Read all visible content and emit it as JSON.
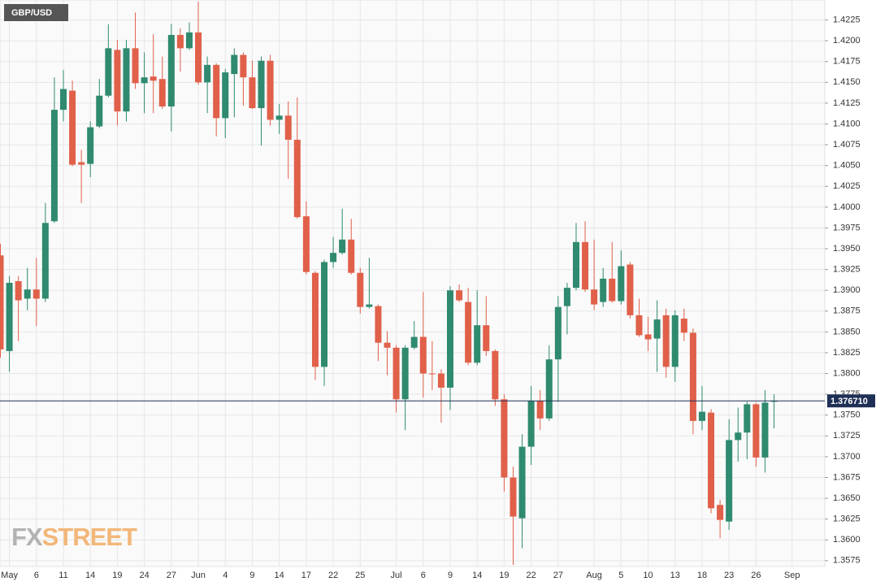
{
  "chart_data": {
    "type": "candlestick",
    "title": "GBP/USD",
    "watermark": [
      "FX",
      "STREET"
    ],
    "categories": [
      null,
      "May",
      null,
      null,
      "6",
      null,
      null,
      "11",
      null,
      null,
      "14",
      null,
      null,
      "19",
      null,
      null,
      "24",
      null,
      null,
      "27",
      null,
      null,
      "Jun",
      null,
      null,
      "4",
      null,
      null,
      "9",
      null,
      null,
      "14",
      null,
      null,
      "17",
      null,
      null,
      "22",
      null,
      null,
      "25",
      null,
      null,
      null,
      "Jul",
      null,
      null,
      "6",
      null,
      null,
      "9",
      null,
      null,
      "14",
      null,
      null,
      "19",
      null,
      null,
      "22",
      null,
      null,
      "27",
      null,
      null,
      null,
      "Aug",
      null,
      null,
      "5",
      null,
      null,
      "10",
      null,
      null,
      "13",
      null,
      null,
      "18",
      null,
      null,
      "23",
      null,
      null,
      "26",
      null,
      null,
      null,
      "Sep"
    ],
    "open": [
      1.3942,
      1.3827,
      1.3911,
      1.389,
      1.3901,
      1.389,
      1.3983,
      1.4117,
      1.414,
      1.4054,
      1.4052,
      1.4097,
      1.4134,
      1.4189,
      1.4115,
      1.4191,
      1.4149,
      1.4157,
      1.4154,
      1.4121,
      1.4207,
      1.4191,
      1.421,
      1.415,
      1.4171,
      1.4107,
      1.416,
      1.4183,
      1.4156,
      1.4119,
      1.4176,
      1.4105,
      1.411,
      1.4081,
      1.3989,
      1.3921,
      1.3808,
      1.3934,
      1.3945,
      1.3961,
      1.3921,
      1.388,
      1.3881,
      1.3837,
      1.3831,
      1.3769,
      1.3831,
      1.3844,
      1.38,
      1.38,
      1.3783,
      1.39,
      1.3886,
      1.3813,
      1.3858,
      1.3827,
      1.3769,
      1.3675,
      1.3626,
      1.3712,
      1.3767,
      1.3746,
      1.3817,
      1.3881,
      1.3903,
      1.3958,
      1.3901,
      1.3886,
      1.3914,
      1.3887,
      1.3931,
      1.387,
      1.3847,
      1.3842,
      1.387,
      1.3808,
      1.3866,
      1.3849,
      1.3743,
      1.3753,
      1.3642,
      1.3622,
      1.372,
      1.3729,
      1.3763,
      1.3699,
      1.3766,
      null,
      null
    ],
    "high": [
      1.3956,
      1.3917,
      1.3917,
      1.3927,
      1.3939,
      1.4005,
      1.4156,
      1.4165,
      1.4152,
      1.4069,
      1.4103,
      1.4154,
      1.422,
      1.4201,
      1.4201,
      1.4234,
      1.4186,
      1.4208,
      1.4181,
      1.422,
      1.4215,
      1.4222,
      1.4247,
      1.4181,
      1.4173,
      1.4166,
      1.4191,
      1.4186,
      1.4176,
      1.4181,
      1.4183,
      1.4124,
      1.4127,
      1.4132,
      1.4007,
      1.3923,
      1.3937,
      1.3964,
      1.3998,
      1.3986,
      1.3927,
      1.3939,
      1.3883,
      1.3851,
      1.3834,
      1.3834,
      1.3863,
      1.3898,
      1.3839,
      1.3805,
      1.3905,
      1.3907,
      1.3903,
      1.39,
      1.3893,
      1.3829,
      1.3775,
      1.3688,
      1.3727,
      1.3785,
      1.378,
      1.3834,
      1.3893,
      1.3909,
      1.3981,
      1.3983,
      1.3961,
      1.3927,
      1.3958,
      1.3948,
      1.3934,
      1.389,
      1.3868,
      1.3888,
      1.3878,
      1.3876,
      1.3878,
      1.3854,
      1.3785,
      1.3757,
      1.3648,
      1.3745,
      1.3759,
      1.3766,
      1.3765,
      1.378,
      1.3775,
      null,
      null
    ],
    "low": [
      1.3819,
      1.3802,
      1.3839,
      1.3876,
      1.3857,
      1.3886,
      1.3981,
      1.4103,
      1.4049,
      1.4005,
      1.4036,
      1.4095,
      1.4132,
      1.4098,
      1.4103,
      1.4142,
      1.4113,
      1.4113,
      1.4118,
      1.4091,
      1.4163,
      1.4189,
      1.4147,
      1.4113,
      1.4085,
      1.4083,
      1.4108,
      1.4122,
      1.4118,
      1.4074,
      1.4098,
      1.4088,
      1.4034,
      1.3986,
      1.3919,
      1.3792,
      1.3785,
      1.3927,
      1.3943,
      1.3919,
      1.3872,
      1.3878,
      1.3815,
      1.3798,
      1.3753,
      1.3732,
      1.3829,
      1.3771,
      1.378,
      1.3741,
      1.3756,
      1.3886,
      1.381,
      1.381,
      1.3821,
      1.3761,
      1.3658,
      1.357,
      1.359,
      1.369,
      1.3732,
      1.3743,
      1.3766,
      1.3847,
      1.39,
      1.3898,
      1.3876,
      1.388,
      1.3885,
      1.3883,
      1.3866,
      1.3844,
      1.3827,
      1.3802,
      1.3795,
      1.379,
      1.3839,
      1.3727,
      1.3732,
      1.3632,
      1.3602,
      1.3612,
      1.3694,
      1.3697,
      1.3688,
      1.3681,
      1.3734,
      null,
      null
    ],
    "close": [
      1.3829,
      1.3909,
      1.3888,
      1.3901,
      1.389,
      1.3981,
      1.4117,
      1.4142,
      1.4051,
      1.4051,
      1.4096,
      1.4134,
      1.4191,
      1.4115,
      1.4191,
      1.4149,
      1.4156,
      1.4152,
      1.4121,
      1.4207,
      1.4191,
      1.421,
      1.415,
      1.4171,
      1.4107,
      1.4162,
      1.4183,
      1.4156,
      1.4119,
      1.4176,
      1.4105,
      1.411,
      1.4081,
      1.3988,
      1.3922,
      1.3808,
      1.3934,
      1.3945,
      1.3961,
      1.3921,
      1.388,
      1.3883,
      1.3837,
      1.3831,
      1.3769,
      1.3831,
      1.3844,
      1.38,
      1.3799,
      1.3783,
      1.39,
      1.3888,
      1.3813,
      1.3858,
      1.3827,
      1.3769,
      1.3675,
      1.3628,
      1.3712,
      1.3767,
      1.3746,
      1.3817,
      1.388,
      1.3903,
      1.3958,
      1.3901,
      1.3883,
      1.3914,
      1.3887,
      1.3929,
      1.387,
      1.3846,
      1.3841,
      1.3865,
      1.3808,
      1.387,
      1.3849,
      1.3743,
      1.3754,
      1.3638,
      1.3624,
      1.372,
      1.3729,
      1.3763,
      1.3699,
      1.3765,
      1.37671,
      null,
      null
    ],
    "last_price_label": "1.376710",
    "up_color": "#2f8a6f",
    "down_color": "#e0604a",
    "last_line_color": "#1f2f56",
    "ylim": [
      1.3568,
      1.4249
    ],
    "yticks": [
      1.3575,
      {
        "value": 1.36,
        "label": "1.3600"
      },
      1.3625,
      {
        "value": 1.365,
        "label": "1.3650"
      },
      1.3675,
      {
        "value": 1.37,
        "label": "1.3700"
      },
      1.3725,
      {
        "value": 1.375,
        "label": "1.3750"
      },
      1.3775,
      {
        "value": 1.38,
        "label": "1.3800"
      },
      1.3825,
      {
        "value": 1.385,
        "label": "1.3850"
      },
      1.3875,
      {
        "value": 1.39,
        "label": "1.3900"
      },
      1.3925,
      {
        "value": 1.395,
        "label": "1.3950"
      },
      1.3975,
      {
        "value": 1.4,
        "label": "1.4000"
      },
      1.4025,
      {
        "value": 1.405,
        "label": "1.4050"
      },
      1.4075,
      {
        "value": 1.41,
        "label": "1.4100"
      },
      1.4125,
      {
        "value": 1.415,
        "label": "1.4150"
      },
      1.4175,
      {
        "value": 1.42,
        "label": "1.4200"
      },
      1.4225
    ],
    "grid": true
  }
}
